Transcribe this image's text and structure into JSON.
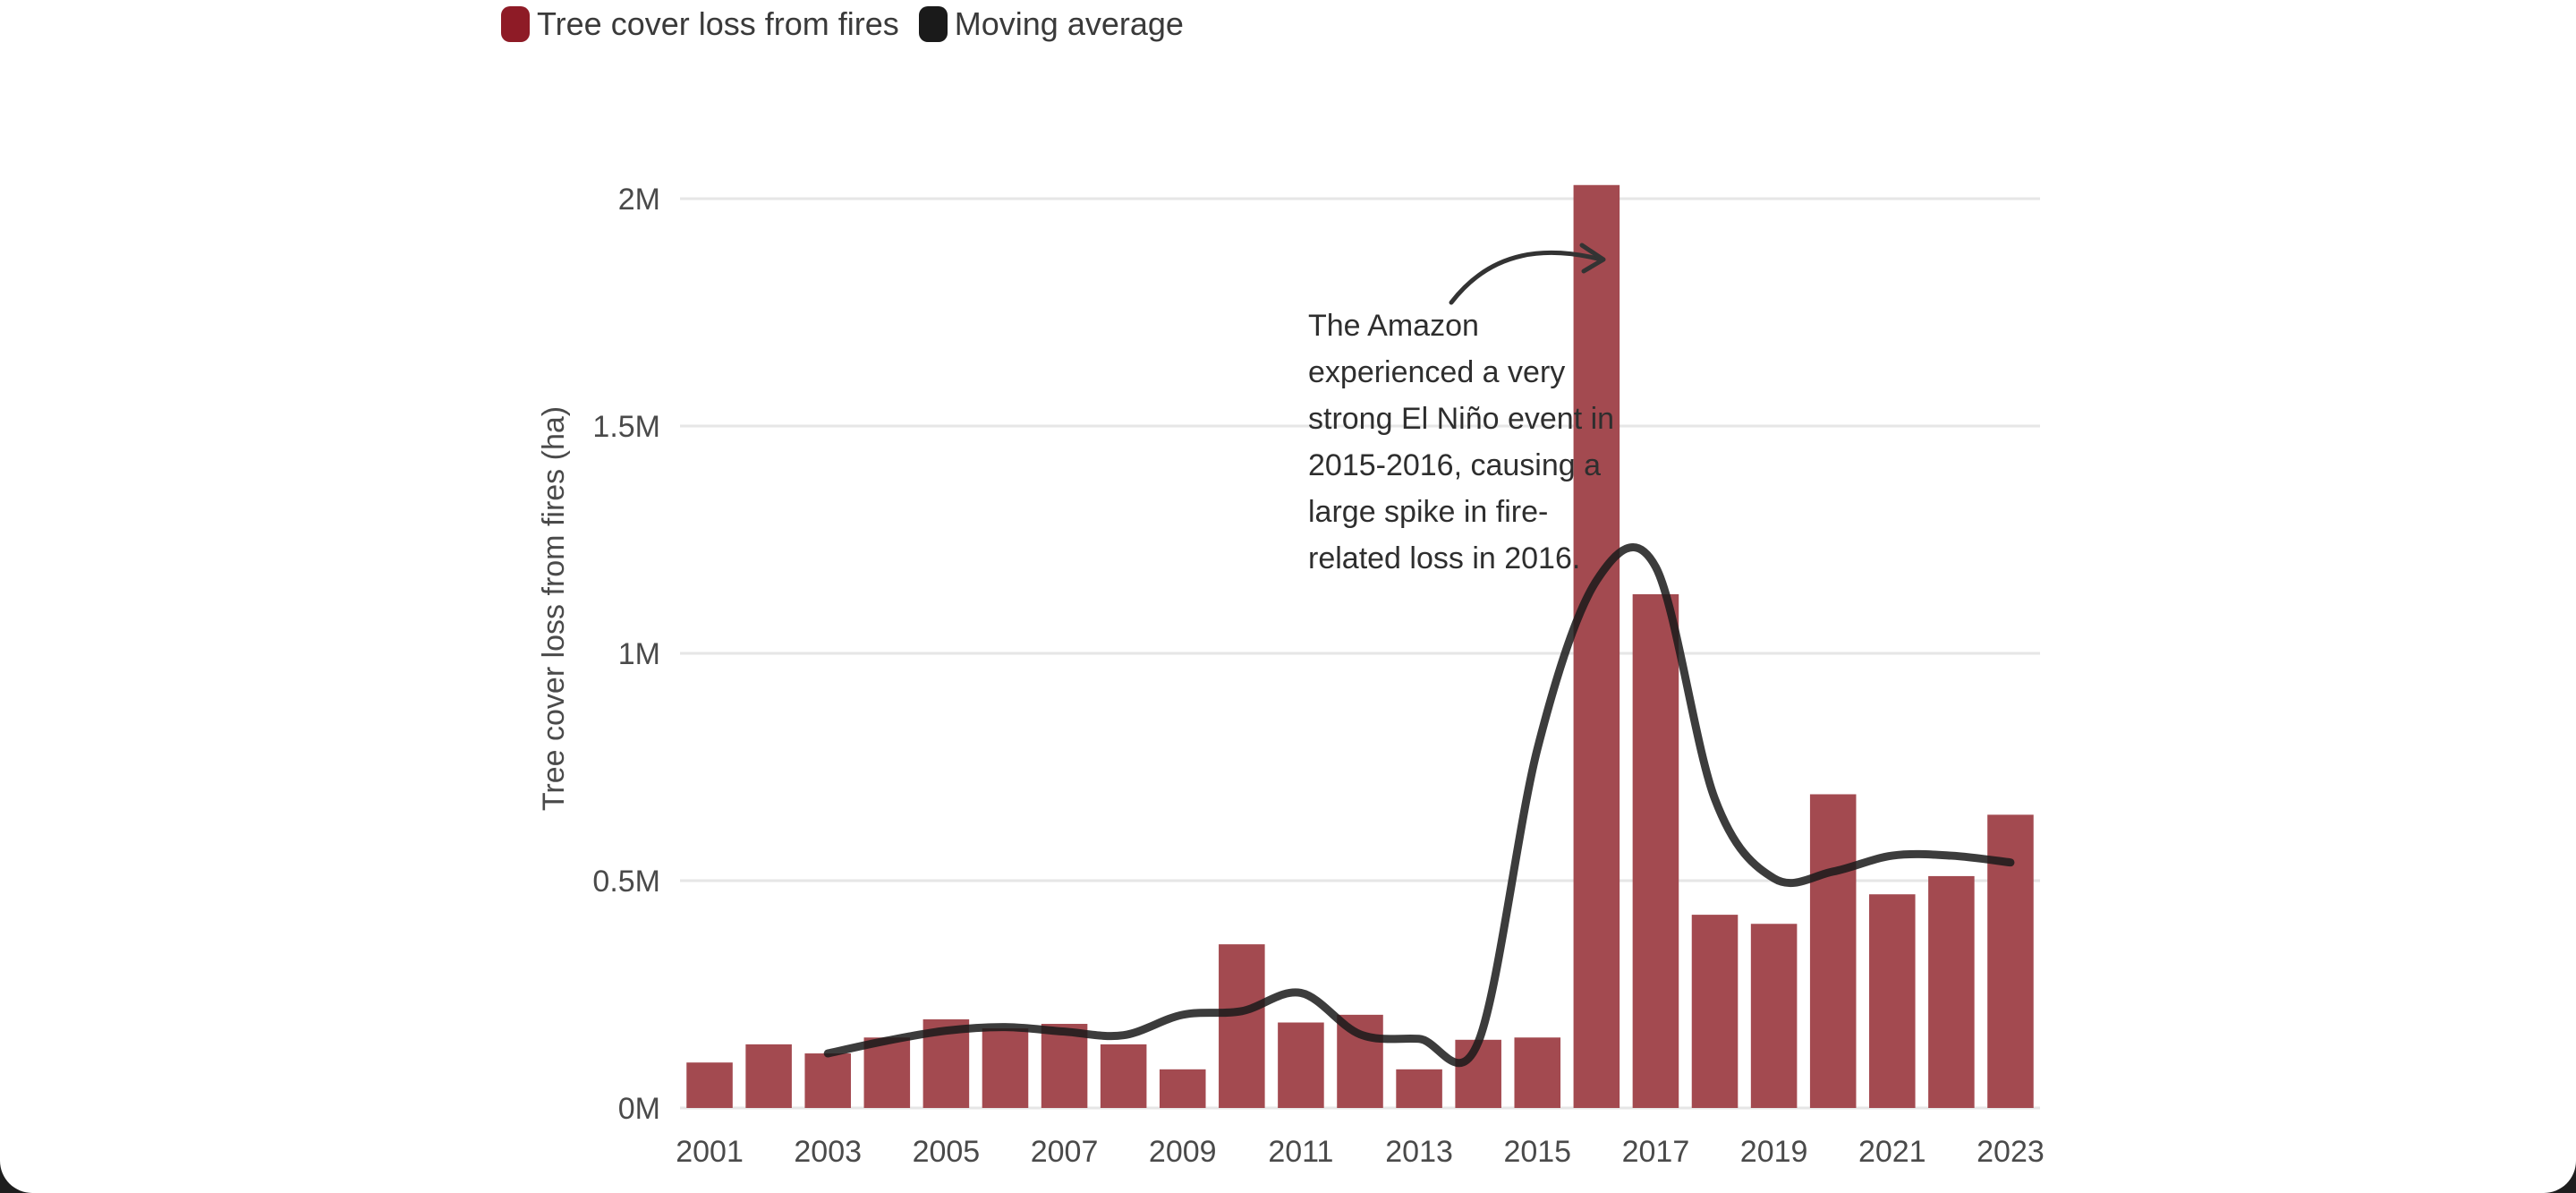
{
  "legend": {
    "fires_label": "Tree cover loss from fires",
    "average_label": "Moving average"
  },
  "colors": {
    "bar": "#a34a50",
    "fires_swatch": "#8e1b26",
    "average_line": "#1a1a1a",
    "grid": "#e6e6e6",
    "axis_text": "#4a4a4a"
  },
  "annotation": {
    "text": "The Amazon experienced a very strong El Niño event in 2015-2016, causing a large spike in fire-related loss in 2016."
  },
  "chart_data": {
    "type": "bar",
    "title": "",
    "xlabel": "",
    "ylabel": "Tree cover loss from fires (ha)",
    "ylim": [
      0,
      2000000
    ],
    "yticks": [
      {
        "value": 0,
        "label": "0M"
      },
      {
        "value": 500000,
        "label": "0.5M"
      },
      {
        "value": 1000000,
        "label": "1M"
      },
      {
        "value": 1500000,
        "label": "1.5M"
      },
      {
        "value": 2000000,
        "label": "2M"
      }
    ],
    "grid": true,
    "legend_position": "top-left",
    "categories": [
      "2001",
      "2002",
      "2003",
      "2004",
      "2005",
      "2006",
      "2007",
      "2008",
      "2009",
      "2010",
      "2011",
      "2012",
      "2013",
      "2014",
      "2015",
      "2016",
      "2017",
      "2018",
      "2019",
      "2020",
      "2021",
      "2022",
      "2023"
    ],
    "xtick_labels": [
      "2001",
      "2003",
      "2005",
      "2007",
      "2009",
      "2011",
      "2013",
      "2015",
      "2017",
      "2019",
      "2021",
      "2023"
    ],
    "series": [
      {
        "name": "Tree cover loss from fires",
        "type": "bar",
        "values": [
          100000,
          140000,
          120000,
          155000,
          195000,
          175000,
          185000,
          140000,
          85000,
          360000,
          188000,
          205000,
          85000,
          150000,
          155000,
          2030000,
          1130000,
          425000,
          405000,
          690000,
          470000,
          510000,
          645000
        ]
      },
      {
        "name": "Moving average",
        "type": "line",
        "x": [
          "2003",
          "2004",
          "2005",
          "2006",
          "2007",
          "2008",
          "2009",
          "2010",
          "2011",
          "2012",
          "2013",
          "2014",
          "2015",
          "2016",
          "2017",
          "2018",
          "2019",
          "2020",
          "2021",
          "2022",
          "2023"
        ],
        "values": [
          120000,
          148000,
          170000,
          178000,
          168000,
          160000,
          205000,
          213000,
          253000,
          162000,
          152000,
          145000,
          790000,
          1160000,
          1190000,
          680000,
          505000,
          520000,
          555000,
          555000,
          540000
        ]
      }
    ]
  }
}
